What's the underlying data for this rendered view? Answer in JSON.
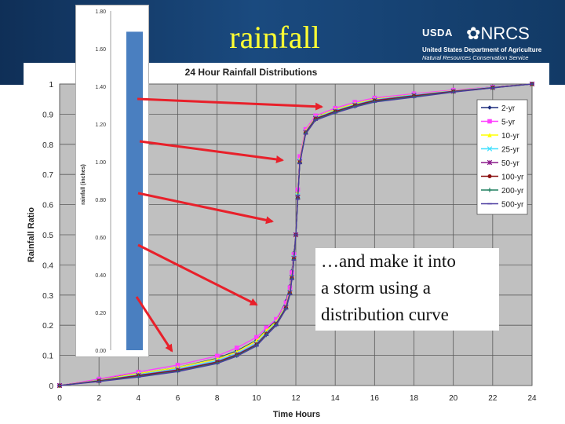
{
  "slide": {
    "title": "rainfall",
    "callout_lines": [
      "…and make it into",
      "a storm using a",
      "distribution curve"
    ],
    "logo": {
      "usda": "USDA",
      "nrcs": "NRCS",
      "line1": "United States Department of Agriculture",
      "line2": "Natural Resources Conservation Service"
    }
  },
  "colors": {
    "header": "#1a4a7f",
    "title": "#ffff33",
    "arrow": "#e8202a",
    "bar": "#4a7fc0",
    "plot_bg": "#c0c0c0"
  },
  "chart_data": [
    {
      "type": "line",
      "title": "24 Hour Rainfall Distributions",
      "xlabel": "Time  Hours",
      "ylabel": "Rainfall Ratio",
      "xlim": [
        0,
        24
      ],
      "ylim": [
        0,
        1
      ],
      "xticks": [
        "0",
        "2",
        "4",
        "6",
        "8",
        "10",
        "12",
        "14",
        "16",
        "18",
        "20",
        "22",
        "24"
      ],
      "yticks": [
        "0",
        "0.1",
        "0.2",
        "0.3",
        "0.4",
        "0.5",
        "0.6",
        "0.7",
        "0.8",
        "0.9",
        "1"
      ],
      "grid": true,
      "legend_position": "top-right",
      "x": [
        0,
        2,
        4,
        6,
        8,
        9,
        10,
        10.5,
        11,
        11.5,
        11.7,
        11.8,
        11.9,
        12,
        12.1,
        12.2,
        12.5,
        13,
        14,
        15,
        16,
        18,
        20,
        22,
        24
      ],
      "series": [
        {
          "name": "2-yr",
          "color": "#1f2f7f",
          "marker": "diamond",
          "values": [
            0,
            0.02,
            0.04,
            0.06,
            0.09,
            0.115,
            0.15,
            0.185,
            0.215,
            0.28,
            0.33,
            0.38,
            0.44,
            0.5,
            0.63,
            0.74,
            0.84,
            0.89,
            0.915,
            0.935,
            0.95,
            0.966,
            0.978,
            0.99,
            1
          ]
        },
        {
          "name": "5-yr",
          "color": "#ff3fff",
          "marker": "square",
          "values": [
            0,
            0.022,
            0.045,
            0.068,
            0.098,
            0.125,
            0.16,
            0.192,
            0.22,
            0.275,
            0.325,
            0.375,
            0.435,
            0.5,
            0.65,
            0.76,
            0.85,
            0.895,
            0.92,
            0.94,
            0.954,
            0.968,
            0.98,
            0.99,
            1
          ]
        },
        {
          "name": "10-yr",
          "color": "#ffff00",
          "marker": "triangle",
          "values": [
            0,
            0.018,
            0.04,
            0.06,
            0.088,
            0.112,
            0.148,
            0.182,
            0.212,
            0.265,
            0.315,
            0.365,
            0.43,
            0.5,
            0.64,
            0.75,
            0.845,
            0.89,
            0.915,
            0.935,
            0.95,
            0.965,
            0.978,
            0.989,
            1
          ]
        },
        {
          "name": "25-yr",
          "color": "#40e0ff",
          "marker": "x",
          "values": [
            0,
            0.017,
            0.036,
            0.055,
            0.082,
            0.106,
            0.14,
            0.175,
            0.208,
            0.262,
            0.31,
            0.36,
            0.425,
            0.5,
            0.63,
            0.745,
            0.842,
            0.888,
            0.912,
            0.932,
            0.948,
            0.964,
            0.977,
            0.989,
            1
          ]
        },
        {
          "name": "50-yr",
          "color": "#8b1a8b",
          "marker": "star",
          "values": [
            0,
            0.016,
            0.034,
            0.052,
            0.079,
            0.103,
            0.137,
            0.172,
            0.205,
            0.26,
            0.308,
            0.358,
            0.422,
            0.5,
            0.625,
            0.742,
            0.84,
            0.886,
            0.91,
            0.93,
            0.946,
            0.962,
            0.976,
            0.988,
            1
          ]
        },
        {
          "name": "100-yr",
          "color": "#8b1010",
          "marker": "circle",
          "values": [
            0,
            0.015,
            0.032,
            0.05,
            0.077,
            0.101,
            0.135,
            0.17,
            0.203,
            0.258,
            0.306,
            0.356,
            0.42,
            0.5,
            0.622,
            0.74,
            0.838,
            0.884,
            0.908,
            0.928,
            0.944,
            0.96,
            0.975,
            0.988,
            1
          ]
        },
        {
          "name": "200-yr",
          "color": "#208060",
          "marker": "plus",
          "values": [
            0,
            0.014,
            0.03,
            0.048,
            0.075,
            0.099,
            0.133,
            0.168,
            0.201,
            0.256,
            0.304,
            0.354,
            0.418,
            0.5,
            0.62,
            0.738,
            0.836,
            0.882,
            0.906,
            0.926,
            0.942,
            0.958,
            0.974,
            0.987,
            1
          ]
        },
        {
          "name": "500-yr",
          "color": "#4a3aa0",
          "marker": "dash",
          "values": [
            0,
            0.013,
            0.028,
            0.046,
            0.073,
            0.097,
            0.131,
            0.166,
            0.199,
            0.254,
            0.302,
            0.352,
            0.416,
            0.5,
            0.618,
            0.736,
            0.834,
            0.88,
            0.904,
            0.924,
            0.94,
            0.956,
            0.973,
            0.987,
            1
          ]
        }
      ]
    },
    {
      "type": "bar",
      "title": "",
      "xlabel": "",
      "ylabel": "rainfall (inches)",
      "categories": [
        ""
      ],
      "values": [
        1.69
      ],
      "ylim": [
        0,
        1.8
      ],
      "yticks": [
        "0.00",
        "0.20",
        "0.40",
        "0.60",
        "0.80",
        "1.00",
        "1.20",
        "1.40",
        "1.60",
        "1.80"
      ],
      "grid": false
    }
  ]
}
